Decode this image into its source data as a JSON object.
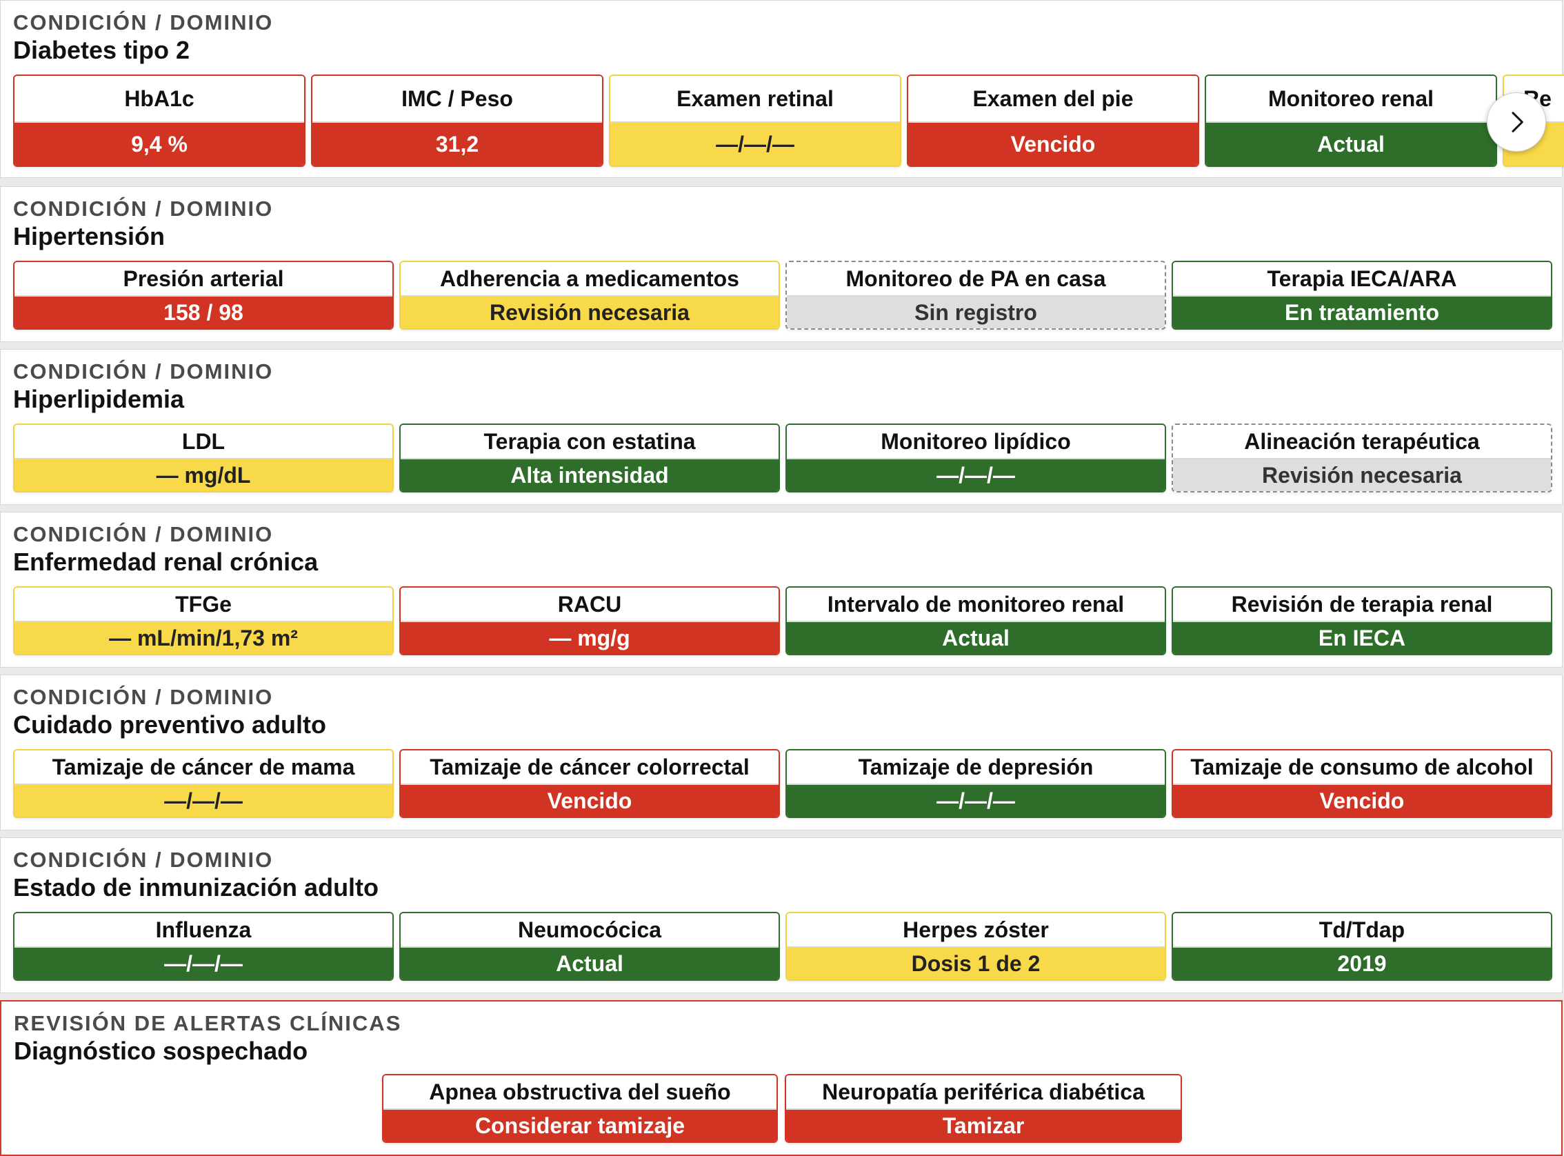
{
  "carousel": {
    "next_icon": "chevron-right-icon"
  },
  "sections": [
    {
      "kicker": "CONDICIÓN / DOMINIO",
      "title": "Diabetes tipo 2",
      "tiles": [
        {
          "label": "HbA1c",
          "value": "9,4 %",
          "status": "red"
        },
        {
          "label": "IMC / Peso",
          "value": "31,2",
          "status": "red"
        },
        {
          "label": "Examen retinal",
          "value": "—/—/—",
          "status": "yellow"
        },
        {
          "label": "Examen del pie",
          "value": "Vencido",
          "status": "red"
        },
        {
          "label": "Monitoreo renal",
          "value": "Actual",
          "status": "green"
        },
        {
          "label": "Re",
          "value": "",
          "status": "yellow"
        }
      ]
    },
    {
      "kicker": "CONDICIÓN / DOMINIO",
      "title": "Hipertensión",
      "tiles": [
        {
          "label": "Presión arterial",
          "value": "158 / 98",
          "status": "red"
        },
        {
          "label": "Adherencia a medicamentos",
          "value": "Revisión necesaria",
          "status": "yellow"
        },
        {
          "label": "Monitoreo de PA en casa",
          "value": "Sin registro",
          "status": "gray"
        },
        {
          "label": "Terapia IECA/ARA",
          "value": "En tratamiento",
          "status": "green"
        }
      ]
    },
    {
      "kicker": "CONDICIÓN / DOMINIO",
      "title": "Hiperlipidemia",
      "tiles": [
        {
          "label": "LDL",
          "value": "— mg/dL",
          "status": "yellow"
        },
        {
          "label": "Terapia con estatina",
          "value": "Alta intensidad",
          "status": "green"
        },
        {
          "label": "Monitoreo lipídico",
          "value": "—/—/—",
          "status": "green"
        },
        {
          "label": "Alineación terapéutica",
          "value": "Revisión necesaria",
          "status": "gray"
        }
      ]
    },
    {
      "kicker": "CONDICIÓN / DOMINIO",
      "title": "Enfermedad renal crónica",
      "tiles": [
        {
          "label": "TFGe",
          "value": "— mL/min/1,73 m²",
          "status": "yellow"
        },
        {
          "label": "RACU",
          "value": "— mg/g",
          "status": "red"
        },
        {
          "label": "Intervalo de monitoreo renal",
          "value": "Actual",
          "status": "green"
        },
        {
          "label": "Revisión de terapia renal",
          "value": "En IECA",
          "status": "green"
        }
      ]
    },
    {
      "kicker": "CONDICIÓN / DOMINIO",
      "title": "Cuidado preventivo adulto",
      "tiles": [
        {
          "label": "Tamizaje de cáncer de mama",
          "value": "—/—/—",
          "status": "yellow"
        },
        {
          "label": "Tamizaje de cáncer colorrectal",
          "value": "Vencido",
          "status": "red"
        },
        {
          "label": "Tamizaje de depresión",
          "value": "—/—/—",
          "status": "green"
        },
        {
          "label": "Tamizaje de consumo de alcohol",
          "value": "Vencido",
          "status": "red"
        }
      ]
    },
    {
      "kicker": "CONDICIÓN / DOMINIO",
      "title": "Estado de inmunización adulto",
      "tiles": [
        {
          "label": "Influenza",
          "value": "—/—/—",
          "status": "green"
        },
        {
          "label": "Neumocócica",
          "value": "Actual",
          "status": "green"
        },
        {
          "label": "Herpes zóster",
          "value": "Dosis 1 de 2",
          "status": "yellow"
        },
        {
          "label": "Td/Tdap",
          "value": "2019",
          "status": "green"
        }
      ]
    },
    {
      "kicker": "REVISIÓN DE ALERTAS CLÍNICAS",
      "title": "Diagnóstico sospechado",
      "tiles": [
        {
          "label": "Apnea obstructiva del sueño",
          "value": "Considerar tamizaje",
          "status": "red"
        },
        {
          "label": "Neuropatía periférica diabética",
          "value": "Tamizar",
          "status": "red"
        }
      ]
    }
  ]
}
